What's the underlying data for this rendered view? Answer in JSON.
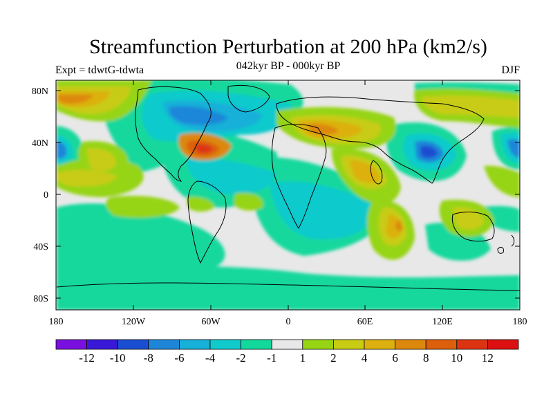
{
  "title": "Streamfunction Perturbation at 200 hPa (km2/s)",
  "subtitle": "042kyr BP - 000kyr BP",
  "left_label": "Expt = tdwtG-tdwta",
  "right_label": "DJF",
  "lat_ticks": [
    "80N",
    "40N",
    "0",
    "40S",
    "80S"
  ],
  "lon_ticks": [
    "180",
    "120W",
    "60W",
    "0",
    "60E",
    "120E",
    "180"
  ],
  "colorbar": {
    "colors": [
      "#7a10e0",
      "#3a18d8",
      "#1a4ed0",
      "#1e86d8",
      "#16b0d8",
      "#10cacc",
      "#12d89c",
      "#e8e8e8",
      "#96d414",
      "#c8cc12",
      "#dcb00e",
      "#dc880c",
      "#dc600c",
      "#dc3412",
      "#dc0f12"
    ],
    "labels": [
      "-12",
      "-10",
      "-8",
      "-6",
      "-4",
      "-2",
      "-1",
      "1",
      "2",
      "4",
      "6",
      "8",
      "10",
      "12"
    ]
  }
}
